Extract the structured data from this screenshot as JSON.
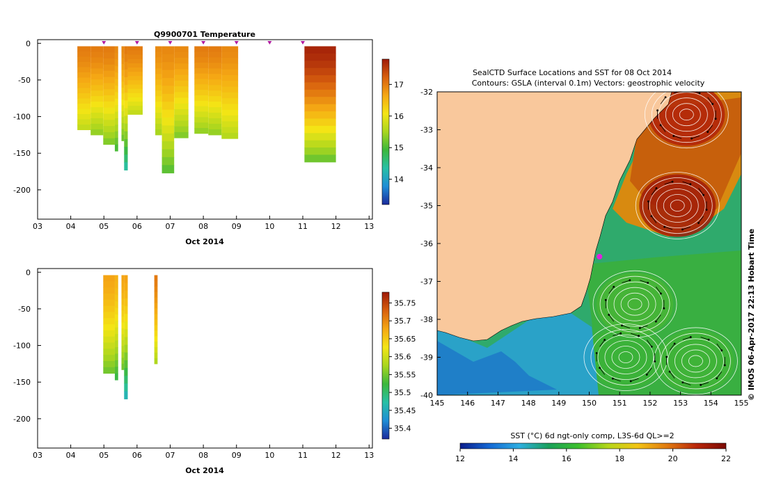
{
  "chart_data": [
    {
      "type": "heatmap",
      "title": "Q9900701  Temperature",
      "xlabel": "Oct 2014",
      "ylabel": "",
      "x_ticks": [
        "03",
        "04",
        "05",
        "06",
        "07",
        "08",
        "09",
        "10",
        "11",
        "12",
        "13"
      ],
      "y_ticks": [
        0,
        -50,
        -100,
        -150,
        -200
      ],
      "xlim": [
        3,
        13.1
      ],
      "ylim": [
        -240,
        5
      ],
      "colorbar": {
        "min": 13.2,
        "max": 17.8,
        "ticks": [
          14,
          15,
          16,
          17
        ],
        "colors": [
          "#1b2a9c",
          "#1f8ed6",
          "#28c0a6",
          "#3cb83c",
          "#a9d61f",
          "#f4e515",
          "#f5a814",
          "#d8600e",
          "#9e1a08"
        ]
      },
      "station_days": [
        5.0,
        6.0,
        7.0,
        8.0,
        9.0,
        10.0,
        11.0
      ],
      "profiles": [
        {
          "x0": 4.2,
          "x1": 4.6,
          "depth": -118,
          "surface": 17.0,
          "bottom": 15.7
        },
        {
          "x0": 4.6,
          "x1": 4.98,
          "depth": -125,
          "surface": 17.0,
          "bottom": 15.4
        },
        {
          "x0": 4.98,
          "x1": 5.33,
          "depth": -138,
          "surface": 17.0,
          "bottom": 15.3
        },
        {
          "x0": 5.33,
          "x1": 5.43,
          "depth": -147,
          "surface": 16.9,
          "bottom": 15.0
        },
        {
          "x0": 5.53,
          "x1": 5.61,
          "depth": -133,
          "surface": 16.9,
          "bottom": 15.2
        },
        {
          "x0": 5.61,
          "x1": 5.72,
          "depth": -173,
          "surface": 17.0,
          "bottom": 14.4
        },
        {
          "x0": 5.72,
          "x1": 6.17,
          "depth": -97,
          "surface": 17.0,
          "bottom": 15.7
        },
        {
          "x0": 6.55,
          "x1": 6.75,
          "depth": -125,
          "surface": 16.9,
          "bottom": 15.5
        },
        {
          "x0": 6.75,
          "x1": 7.12,
          "depth": -177,
          "surface": 16.9,
          "bottom": 15.1
        },
        {
          "x0": 7.12,
          "x1": 7.55,
          "depth": -129,
          "surface": 16.9,
          "bottom": 15.3
        },
        {
          "x0": 7.73,
          "x1": 8.15,
          "depth": -123,
          "surface": 17.0,
          "bottom": 15.4
        },
        {
          "x0": 8.15,
          "x1": 8.55,
          "depth": -125,
          "surface": 17.0,
          "bottom": 15.4
        },
        {
          "x0": 8.55,
          "x1": 9.05,
          "depth": -130,
          "surface": 16.9,
          "bottom": 15.6
        },
        {
          "x0": 11.05,
          "x1": 12.0,
          "depth": -162,
          "surface": 17.7,
          "bottom": 15.2
        }
      ]
    },
    {
      "type": "heatmap",
      "title": "",
      "xlabel": "Oct 2014",
      "ylabel": "",
      "x_ticks": [
        "03",
        "04",
        "05",
        "06",
        "07",
        "08",
        "09",
        "10",
        "11",
        "12",
        "13"
      ],
      "y_ticks": [
        0,
        -50,
        -100,
        -150,
        -200
      ],
      "xlim": [
        3,
        13.1
      ],
      "ylim": [
        -240,
        5
      ],
      "colorbar": {
        "min": 35.37,
        "max": 35.78,
        "ticks": [
          "35.4",
          "35.45",
          "35.5",
          "35.55",
          "35.6",
          "35.65",
          "35.7",
          "35.75"
        ],
        "colors": [
          "#1b2a9c",
          "#1f8ed6",
          "#28c0a6",
          "#3cb83c",
          "#a9d61f",
          "#f4e515",
          "#f5a814",
          "#d8600e",
          "#9e1a08"
        ]
      },
      "profiles": [
        {
          "x0": 4.98,
          "x1": 5.33,
          "depth": -138,
          "surface": 35.68,
          "bottom": 35.55
        },
        {
          "x0": 5.33,
          "x1": 5.43,
          "depth": -147,
          "surface": 35.67,
          "bottom": 35.52
        },
        {
          "x0": 5.53,
          "x1": 5.61,
          "depth": -133,
          "surface": 35.68,
          "bottom": 35.55
        },
        {
          "x0": 5.61,
          "x1": 5.72,
          "depth": -173,
          "surface": 35.68,
          "bottom": 35.46
        },
        {
          "x0": 6.52,
          "x1": 6.62,
          "depth": -125,
          "surface": 35.71,
          "bottom": 35.58
        }
      ]
    },
    {
      "type": "heatmap",
      "title": "SealCTD Surface Locations and SST for 08 Oct 2014",
      "subtitle": "Contours: GSLA (interval 0.1m) Vectors: geostrophic velocity",
      "xlabel": "",
      "ylabel": "",
      "x_ticks": [
        "145",
        "146",
        "147",
        "148",
        "149",
        "150",
        "151",
        "152",
        "153",
        "154",
        "155"
      ],
      "y_ticks": [
        "-32",
        "-33",
        "-34",
        "-35",
        "-36",
        "-37",
        "-38",
        "-39",
        "-40"
      ],
      "xlim": [
        145,
        155
      ],
      "ylim": [
        -40,
        -32
      ],
      "side_label": "© IMOS 06-Apr-2017 22:13 Hobart Time",
      "colorbar": {
        "label": "SST (°C) 6d ngt-only comp, L3S-6d QL>=2",
        "min": 12,
        "max": 22,
        "ticks": [
          "12",
          "14",
          "16",
          "18",
          "20",
          "22"
        ],
        "colors": [
          "#0a1c8a",
          "#1468d4",
          "#2eaee0",
          "#1aa05a",
          "#3cbf2c",
          "#b4d61a",
          "#f2c414",
          "#e07a10",
          "#b8260a",
          "#7a0a04"
        ]
      },
      "eddies": [
        {
          "lon": 152.9,
          "lat": -35.0,
          "sst": 21.3
        },
        {
          "lon": 153.2,
          "lat": -32.6,
          "sst": 21.0
        },
        {
          "lon": 151.2,
          "lat": -39.0,
          "sst": 16.5
        },
        {
          "lon": 153.5,
          "lat": -39.1,
          "sst": 16.8
        },
        {
          "lon": 151.5,
          "lat": -37.6,
          "sst": 17.2
        }
      ],
      "seal_locations": [
        {
          "lon": 150.2,
          "lat": -36.2
        }
      ]
    }
  ]
}
